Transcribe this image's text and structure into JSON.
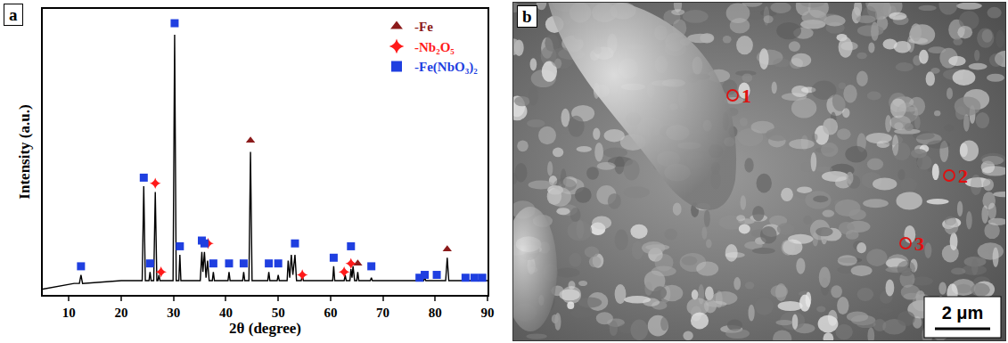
{
  "chart_data": {
    "type": "line",
    "panel_label": "a",
    "x_label": "2θ (degree)",
    "y_label": "Intensity (a.u.)",
    "xlim": [
      5,
      90
    ],
    "xticks": [
      10,
      20,
      30,
      40,
      50,
      60,
      70,
      80,
      90
    ],
    "ylim": [
      0,
      100
    ],
    "tick_labels": "x",
    "grid": false,
    "legend": "top right",
    "series": [
      {
        "type": "line",
        "color": "#000000",
        "x": [
          5,
          8,
          11,
          12.0,
          12.3,
          12.6,
          16,
          20,
          24.0,
          24.3,
          24.6,
          25.3,
          25.5,
          25.7,
          26.2,
          26.5,
          26.8,
          27.0,
          27.2,
          27.4,
          29.9,
          30.2,
          30.5,
          31.0,
          31.2,
          31.4,
          35.1,
          35.4,
          35.6,
          35.9,
          36.2,
          36.5,
          36.8,
          37.4,
          37.6,
          37.8,
          40.4,
          40.6,
          40.8,
          43.2,
          43.4,
          43.6,
          44.4,
          44.7,
          45.0,
          48.0,
          48.2,
          48.4,
          49.8,
          50.0,
          50.2,
          51.7,
          51.9,
          52.2,
          52.5,
          52.8,
          53.2,
          53.5,
          54.4,
          54.6,
          54.8,
          60.4,
          60.6,
          60.8,
          62.6,
          62.8,
          63.0,
          63.7,
          63.9,
          64.1,
          64.3,
          64.6,
          65.0,
          65.2,
          65.4,
          67.6,
          67.8,
          68.0,
          77.8,
          78.0,
          78.2,
          82.0,
          82.3,
          82.6,
          90
        ],
        "values": [
          2,
          3,
          4,
          4,
          7,
          4,
          4.5,
          5,
          5,
          38,
          5,
          5,
          8,
          5,
          5,
          36,
          5,
          5,
          7,
          5,
          5,
          91,
          5,
          5,
          14,
          5,
          5,
          15,
          8,
          15,
          6,
          12,
          5,
          5,
          8,
          5,
          5,
          8,
          5,
          5,
          8,
          5,
          5,
          50,
          5,
          5,
          8,
          5,
          5,
          7,
          5,
          5,
          12,
          6,
          14,
          7,
          14,
          5,
          5,
          7,
          5,
          5,
          10,
          5,
          5,
          7,
          5,
          5,
          9,
          6,
          10,
          5,
          5,
          8,
          5,
          5,
          6,
          5,
          5,
          6,
          5,
          5,
          13,
          5,
          5
        ]
      },
      {
        "name": "-Fe",
        "type": "scatter",
        "marker": "triangle-up",
        "color": "#8b1a1a",
        "x": [
          44.7,
          65.2,
          82.3
        ],
        "values": [
          54,
          11,
          16
        ]
      },
      {
        "name": "-Nb₂O₅",
        "type": "scatter",
        "marker": "star-diamond",
        "color": "#ff1a1a",
        "x": [
          26.5,
          27.6,
          36.6,
          54.6,
          62.6,
          63.9
        ],
        "values": [
          39,
          8,
          18,
          7,
          8,
          11
        ]
      },
      {
        "name": "-Fe(NbO₃)₂",
        "type": "scatter",
        "marker": "square",
        "color": "#1f3fe0",
        "x": [
          12.3,
          24.3,
          25.5,
          30.2,
          31.2,
          35.4,
          35.9,
          37.6,
          40.6,
          43.4,
          48.2,
          50.0,
          53.2,
          60.6,
          63.9,
          67.8,
          77.0,
          78.0,
          80.3,
          85.8,
          87.5,
          89.0
        ],
        "values": [
          10,
          41,
          11,
          95,
          17,
          19,
          18,
          11,
          11,
          11,
          11,
          11,
          18,
          13,
          17,
          10,
          6,
          7,
          7,
          6,
          6,
          6
        ]
      }
    ]
  },
  "panel_b": {
    "panel_label": "b",
    "points": [
      {
        "label": "1"
      },
      {
        "label": "2"
      },
      {
        "label": "3"
      }
    ],
    "scale_bar": "2 μm"
  }
}
